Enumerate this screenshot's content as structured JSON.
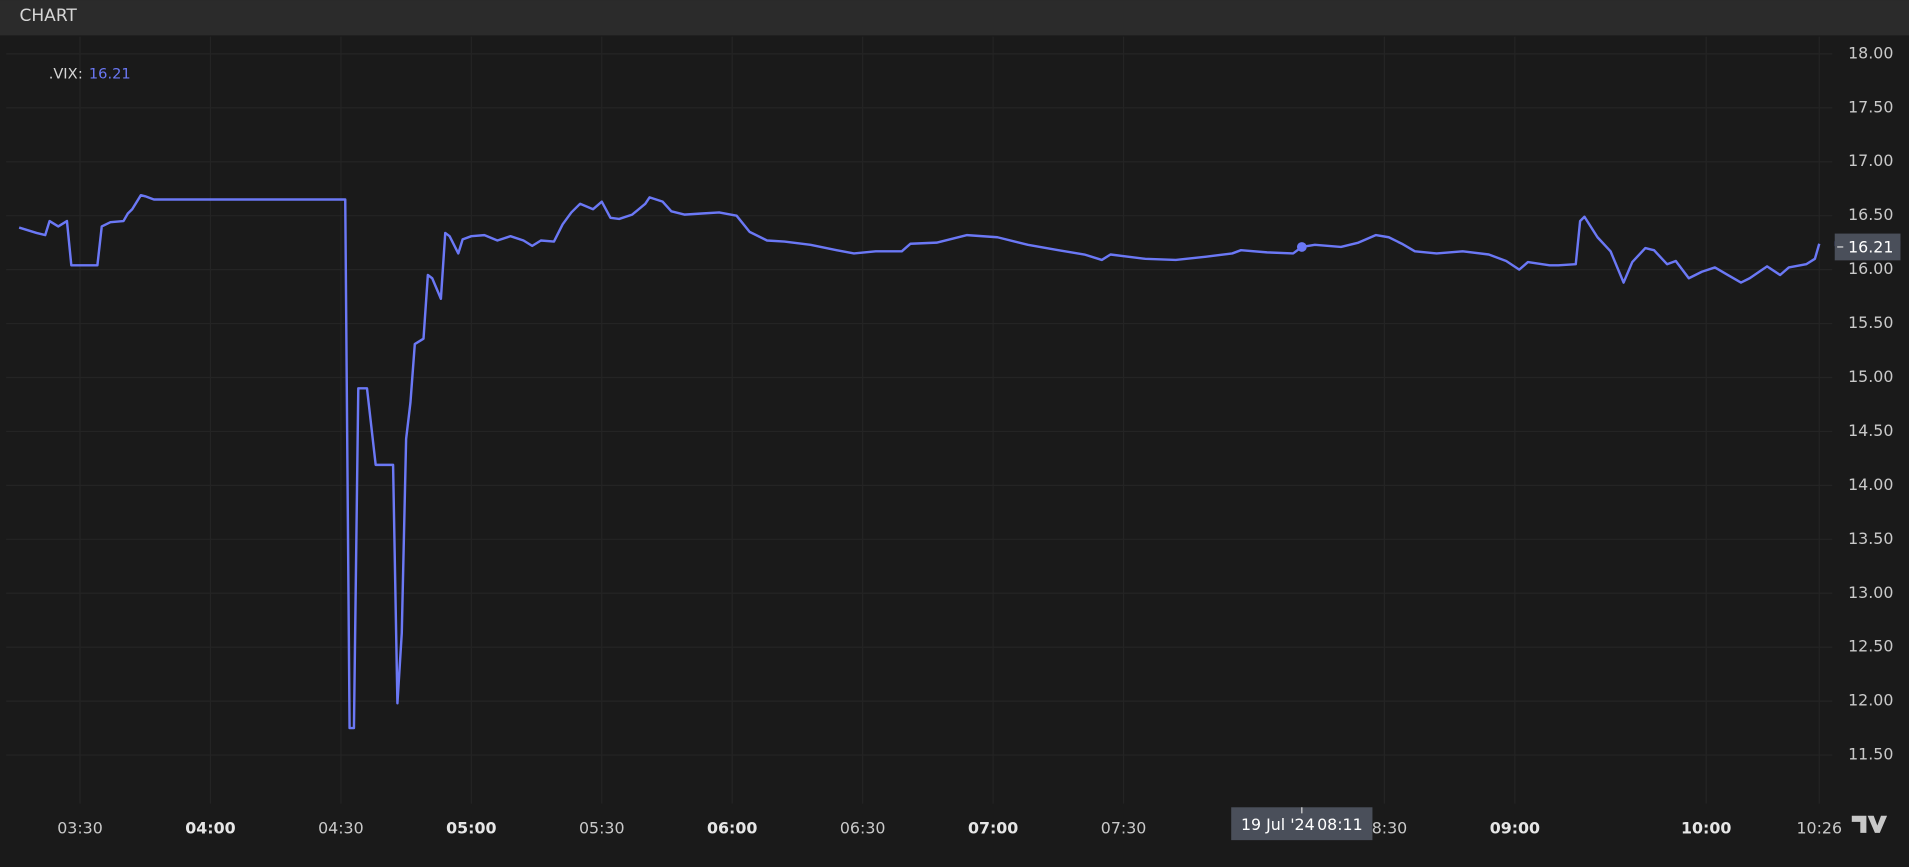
{
  "header": {
    "title": "CHART"
  },
  "chart_data": {
    "type": "line",
    "legend_separator": ":",
    "x": [
      "03:16",
      "03:20",
      "03:22",
      "03:23",
      "03:25",
      "03:27",
      "03:28",
      "03:34",
      "03:35",
      "03:37",
      "03:40",
      "03:41",
      "03:42",
      "03:44",
      "03:45",
      "03:47",
      "03:55",
      "04:05",
      "04:15",
      "04:25",
      "04:31",
      "04:32",
      "04:33",
      "04:34",
      "04:36",
      "04:38",
      "04:42",
      "04:43",
      "04:44",
      "04:45",
      "04:46",
      "04:47",
      "04:49",
      "04:50",
      "04:51",
      "04:53",
      "04:54",
      "04:55",
      "04:57",
      "04:58",
      "05:00",
      "05:03",
      "05:06",
      "05:09",
      "05:12",
      "05:14",
      "05:16",
      "05:19",
      "05:21",
      "05:23",
      "05:25",
      "05:28",
      "05:30",
      "05:32",
      "05:34",
      "05:37",
      "05:40",
      "05:41",
      "05:44",
      "05:46",
      "05:49",
      "05:53",
      "05:57",
      "06:01",
      "06:04",
      "06:08",
      "06:12",
      "06:18",
      "06:24",
      "06:28",
      "06:33",
      "06:39",
      "06:41",
      "06:47",
      "06:54",
      "07:01",
      "07:08",
      "07:15",
      "07:21",
      "07:25",
      "07:27",
      "07:35",
      "07:42",
      "07:49",
      "07:55",
      "07:57",
      "08:03",
      "08:09",
      "08:11",
      "08:14",
      "08:20",
      "08:24",
      "08:28",
      "08:31",
      "08:34",
      "08:37",
      "08:42",
      "08:48",
      "08:54",
      "08:58",
      "09:01",
      "09:03",
      "09:08",
      "09:10",
      "09:14",
      "09:31",
      "09:32",
      "09:35",
      "09:38",
      "09:41",
      "09:43",
      "09:46",
      "09:48",
      "09:51",
      "09:53",
      "09:56",
      "09:59",
      "10:02",
      "10:05",
      "10:08",
      "10:10",
      "10:14",
      "10:17",
      "10:19",
      "10:23",
      "10:25",
      "10:26"
    ],
    "series": [
      {
        "name": ".VIX",
        "color": "#6b78f5",
        "values": [
          16.39,
          16.34,
          16.32,
          16.45,
          16.4,
          16.45,
          16.04,
          16.04,
          16.4,
          16.44,
          16.45,
          16.52,
          16.56,
          16.69,
          16.68,
          16.65,
          16.65,
          16.65,
          16.65,
          16.65,
          16.65,
          11.75,
          11.75,
          14.9,
          14.9,
          14.19,
          14.19,
          11.98,
          12.63,
          14.43,
          14.77,
          15.31,
          15.36,
          15.95,
          15.92,
          15.73,
          16.34,
          16.31,
          16.15,
          16.28,
          16.31,
          16.32,
          16.27,
          16.31,
          16.27,
          16.22,
          16.27,
          16.26,
          16.42,
          16.53,
          16.61,
          16.56,
          16.63,
          16.48,
          16.47,
          16.51,
          16.61,
          16.67,
          16.63,
          16.54,
          16.51,
          16.52,
          16.53,
          16.5,
          16.35,
          16.27,
          16.26,
          16.23,
          16.18,
          16.15,
          16.17,
          16.17,
          16.24,
          16.25,
          16.32,
          16.3,
          16.23,
          16.18,
          16.14,
          16.09,
          16.14,
          16.1,
          16.09,
          16.12,
          16.15,
          16.18,
          16.16,
          16.15,
          16.21,
          16.23,
          16.21,
          16.25,
          16.32,
          16.3,
          16.24,
          16.17,
          16.15,
          16.17,
          16.14,
          16.08,
          16.0,
          16.07,
          16.04,
          16.04,
          16.05,
          16.45,
          16.49,
          16.3,
          16.17,
          15.88,
          16.07,
          16.2,
          16.18,
          16.05,
          16.08,
          15.92,
          15.98,
          16.02,
          15.95,
          15.88,
          15.92,
          16.03,
          15.95,
          16.02,
          16.05,
          16.1,
          16.24
        ]
      }
    ],
    "xlim": [
      "03:13",
      "10:29"
    ],
    "xticks": [
      "03:30",
      "04:00",
      "04:30",
      "05:00",
      "05:30",
      "06:00",
      "06:30",
      "07:00",
      "07:30",
      "08:30",
      "09:00",
      "10:00",
      "10:26"
    ],
    "ylim": [
      11.05,
      18.16
    ],
    "yticks": [
      {
        "value": 11.5,
        "label": "11.50"
      },
      {
        "value": 12,
        "label": "12.00"
      },
      {
        "value": 12.5,
        "label": "12.50"
      },
      {
        "value": 13,
        "label": "13.00"
      },
      {
        "value": 13.5,
        "label": "13.50"
      },
      {
        "value": 14,
        "label": "14.00"
      },
      {
        "value": 14.5,
        "label": "14.50"
      },
      {
        "value": 15,
        "label": "15.00"
      },
      {
        "value": 15.5,
        "label": "15.50"
      },
      {
        "value": 16,
        "label": "16.00"
      },
      {
        "value": 16.5,
        "label": "16.50"
      },
      {
        "value": 17,
        "label": "17.00"
      },
      {
        "value": 17.5,
        "label": "17.50"
      },
      {
        "value": 18,
        "label": "18.00"
      }
    ],
    "grid": true,
    "crosshair": {
      "date": "19 Jul '24",
      "time": "08:11",
      "value": 16.21
    }
  }
}
